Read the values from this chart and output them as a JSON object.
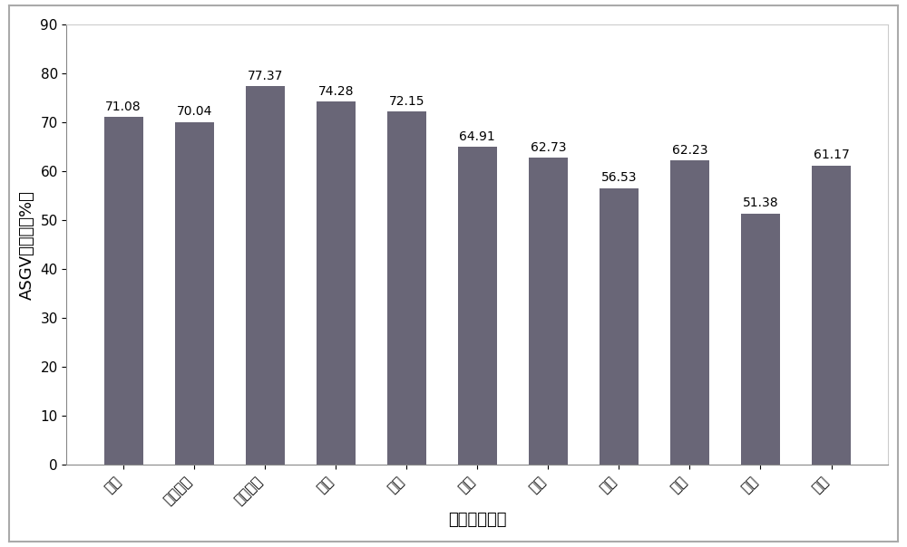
{
  "categories": [
    "平遥",
    "临汾市区",
    "运城市区",
    "霍州",
    "襄汾",
    "新绛",
    "曲没",
    "万荣",
    "吉县",
    "平陆",
    "临猗"
  ],
  "values": [
    71.08,
    70.04,
    77.37,
    74.28,
    72.15,
    64.91,
    62.73,
    56.53,
    62.23,
    51.38,
    61.17
  ],
  "bar_color": "#696677",
  "xlabel": "山西省采样点",
  "ylabel": "ASGV检出率（%）",
  "ylim": [
    0,
    90
  ],
  "yticks": [
    0,
    10,
    20,
    30,
    40,
    50,
    60,
    70,
    80,
    90
  ],
  "label_fontsize": 13,
  "tick_fontsize": 11,
  "value_fontsize": 10,
  "axes_bg": "#ffffff",
  "figure_bg": "#ffffff",
  "border_color": "#aaaaaa"
}
